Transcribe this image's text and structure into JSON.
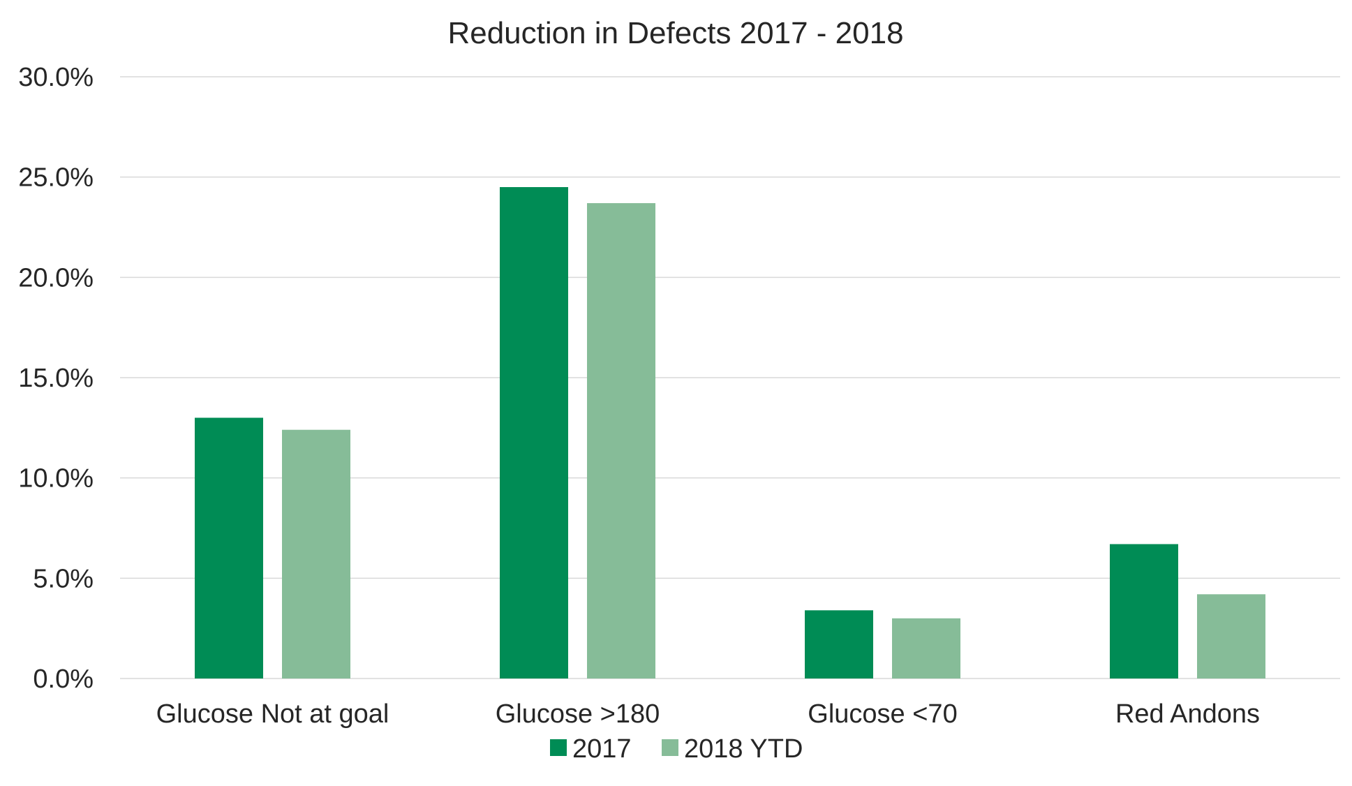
{
  "chart_data": {
    "type": "bar",
    "title": "Reduction in Defects 2017 - 2018",
    "xlabel": "",
    "ylabel": "",
    "categories": [
      "Glucose Not at goal",
      "Glucose >180",
      "Glucose <70",
      "Red Andons"
    ],
    "series": [
      {
        "name": "2017",
        "values": [
          13.0,
          24.5,
          3.4,
          6.7
        ],
        "color": "#008c55"
      },
      {
        "name": "2018 YTD",
        "values": [
          12.4,
          23.7,
          3.0,
          4.2
        ],
        "color": "#86bc98"
      }
    ],
    "ylim": [
      0,
      30
    ],
    "yticks": [
      0,
      5,
      10,
      15,
      20,
      25,
      30
    ],
    "ytick_labels": [
      "0.0%",
      "5.0%",
      "10.0%",
      "15.0%",
      "20.0%",
      "25.0%",
      "30.0%"
    ],
    "grid": true,
    "legend_position": "bottom"
  }
}
